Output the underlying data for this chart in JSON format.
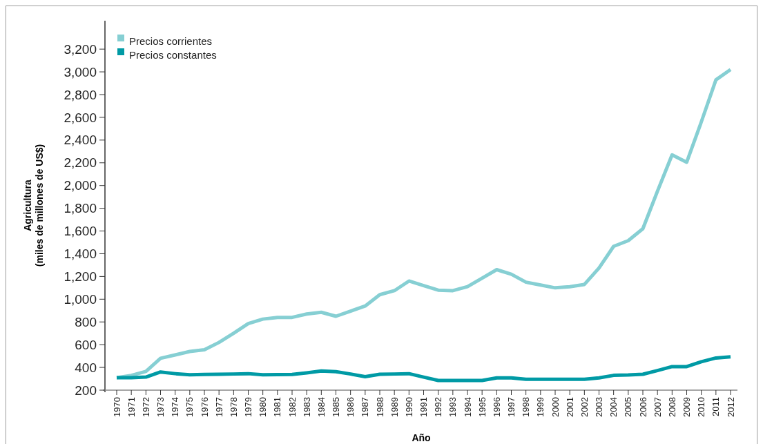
{
  "chart_data": {
    "type": "line",
    "xlabel": "Año",
    "ylabel": "Agricultura\n(miles de millones de US$)",
    "categories": [
      "1970",
      "1971",
      "1972",
      "1973",
      "1974",
      "1975",
      "1976",
      "1977",
      "1978",
      "1979",
      "1980",
      "1981",
      "1982",
      "1983",
      "1984",
      "1985",
      "1986",
      "1987",
      "1988",
      "1989",
      "1990",
      "1991",
      "1992",
      "1993",
      "1994",
      "1995",
      "1996",
      "1997",
      "1998",
      "1999",
      "2000",
      "2001",
      "2002",
      "2003",
      "2004",
      "2005",
      "2006",
      "2007",
      "2008",
      "2009",
      "2010",
      "2011",
      "2012"
    ],
    "series": [
      {
        "name": "Precios corrientes",
        "color": "#86cfd3",
        "values": [
          310,
          330,
          365,
          480,
          510,
          540,
          555,
          620,
          700,
          785,
          825,
          840,
          840,
          870,
          885,
          850,
          895,
          940,
          1040,
          1075,
          1160,
          1120,
          1080,
          1075,
          1110,
          1185,
          1260,
          1220,
          1150,
          1125,
          1100,
          1110,
          1130,
          1275,
          1465,
          1515,
          1620,
          1950,
          2270,
          2205,
          2560,
          2930,
          3020
        ]
      },
      {
        "name": "Precios constantes",
        "color": "#009aa5",
        "values": [
          310,
          310,
          315,
          360,
          345,
          335,
          338,
          340,
          342,
          345,
          335,
          337,
          338,
          352,
          368,
          362,
          342,
          318,
          340,
          342,
          345,
          315,
          285,
          285,
          285,
          285,
          308,
          308,
          295,
          295,
          295,
          295,
          295,
          308,
          330,
          333,
          340,
          372,
          407,
          407,
          450,
          483,
          493
        ]
      }
    ],
    "ylim": [
      200,
      3450
    ],
    "yticks": [
      {
        "value": 200,
        "label": "200"
      },
      {
        "value": 400,
        "label": "400"
      },
      {
        "value": 600,
        "label": "600"
      },
      {
        "value": 800,
        "label": "800"
      },
      {
        "value": 1000,
        "label": "1,000"
      },
      {
        "value": 1200,
        "label": "1,200"
      },
      {
        "value": 1400,
        "label": "1,400"
      },
      {
        "value": 1600,
        "label": "1,600"
      },
      {
        "value": 1800,
        "label": "1,800"
      },
      {
        "value": 2000,
        "label": "2,000"
      },
      {
        "value": 2200,
        "label": "2,200"
      },
      {
        "value": 2400,
        "label": "2,400"
      },
      {
        "value": 2600,
        "label": "2,600"
      },
      {
        "value": 2800,
        "label": "2,800"
      },
      {
        "value": 3000,
        "label": "3,000"
      },
      {
        "value": 3200,
        "label": "3,200"
      }
    ],
    "grid": false,
    "legend": "top left",
    "marker": "none",
    "line_style": "solid"
  }
}
